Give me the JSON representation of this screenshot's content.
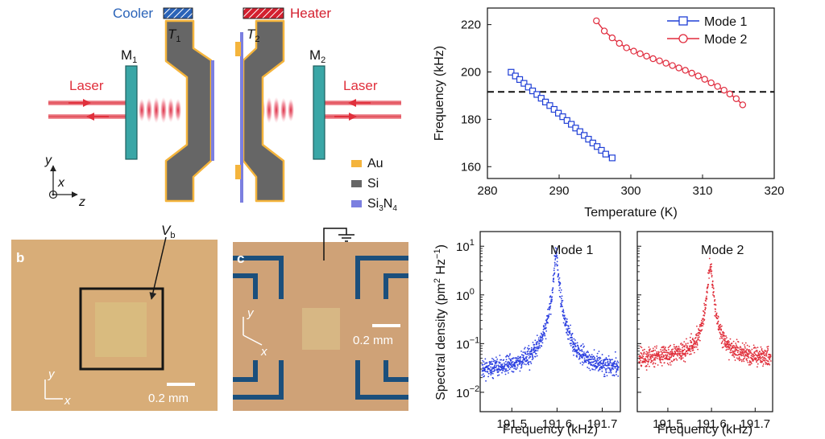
{
  "panel_a": {
    "cooler_label": "Cooler",
    "heater_label": "Heater",
    "t1_label": "T",
    "t1_sub": "1",
    "t2_label": "T",
    "t2_sub": "2",
    "m1_label": "M",
    "m1_sub": "1",
    "m2_label": "M",
    "m2_sub": "2",
    "laser_left": "Laser",
    "laser_right": "Laser",
    "axis_y": "y",
    "axis_x": "x",
    "axis_z": "z",
    "legend": {
      "au": "Au",
      "si": "Si",
      "sin_base": "Si",
      "sin_sub1": "3",
      "sin_mid": "N",
      "sin_sub2": "4"
    },
    "colors": {
      "au": "#f4b43c",
      "si": "#666666",
      "sin": "#7b7fe0",
      "cooler": "#2a63b8",
      "heater": "#d4202f",
      "laser": "#e0303c",
      "mirror": "#3aa6a6"
    }
  },
  "panel_b": {
    "panel_label": "b",
    "vb_label": "V",
    "vb_sub": "b",
    "scale_bar": "0.2 mm",
    "axis_y": "y",
    "axis_x": "x"
  },
  "panel_c": {
    "panel_label": "c",
    "scale_bar": "0.2 mm",
    "axis_y": "y",
    "axis_x": "x"
  },
  "chart_data": [
    {
      "type": "line",
      "id": "freq_vs_temp",
      "title": "",
      "xlabel": "Temperature (K)",
      "ylabel": "Frequency (kHz)",
      "xlim": [
        280,
        320
      ],
      "ylim": [
        155,
        227
      ],
      "xticks": [
        280,
        290,
        300,
        310,
        320
      ],
      "yticks": [
        160,
        180,
        200,
        220
      ],
      "reference_line_y": 191.6,
      "legend_position": "top-right",
      "series": [
        {
          "name": "Mode 1",
          "color": "#1f3fd6",
          "marker": "square",
          "x": [
            283.3,
            283.9,
            284.5,
            285.1,
            285.7,
            286.3,
            286.9,
            287.5,
            288.1,
            288.7,
            289.3,
            289.9,
            290.5,
            291.1,
            291.7,
            292.3,
            292.9,
            293.5,
            294.1,
            294.7,
            295.3,
            295.9,
            296.5,
            297.4
          ],
          "y": [
            199.9,
            198.3,
            196.8,
            195.2,
            193.6,
            192.0,
            190.5,
            188.9,
            187.3,
            185.8,
            184.2,
            182.6,
            181.1,
            179.5,
            177.9,
            176.3,
            174.8,
            173.2,
            171.6,
            170.0,
            168.5,
            166.9,
            165.3,
            163.7
          ]
        },
        {
          "name": "Mode 2",
          "color": "#e02a3c",
          "marker": "circle",
          "x": [
            295.2,
            296.3,
            297.4,
            298.4,
            299.4,
            300.4,
            301.3,
            302.2,
            303.1,
            304.0,
            304.9,
            305.8,
            306.7,
            307.6,
            308.5,
            309.4,
            310.3,
            311.2,
            312.1,
            313.0,
            313.8,
            314.7,
            315.6
          ],
          "y": [
            221.6,
            217.3,
            214.4,
            212.1,
            210.2,
            208.8,
            207.7,
            206.7,
            205.6,
            204.7,
            203.7,
            202.7,
            201.7,
            200.7,
            199.5,
            198.3,
            196.9,
            195.4,
            193.9,
            192.3,
            190.7,
            188.7,
            186.1
          ]
        }
      ]
    },
    {
      "type": "scatter",
      "id": "spectrum_mode1",
      "title": "Mode 1",
      "xlabel": "Frequency (kHz)",
      "ylabel": "Spectral density (pm² Hz⁻¹)",
      "ylabel_base": "Spectral density (pm",
      "ylabel_sup1": "2",
      "ylabel_mid": " Hz",
      "ylabel_sup2": "−1",
      "ylabel_end": ")",
      "yscale": "log",
      "xlim": [
        191.43,
        191.74
      ],
      "ylim": [
        0.004,
        20
      ],
      "xticks": [
        191.5,
        191.6,
        191.7
      ],
      "xticklabels": [
        "191.5",
        "191.6",
        "191.7"
      ],
      "yticks": [
        0.01,
        0.1,
        1,
        10
      ],
      "ytick_base": [
        "10",
        "10",
        "10",
        "10"
      ],
      "ytick_exp": [
        "−2",
        "−1",
        "0",
        "1"
      ],
      "peak_frequency": 191.598,
      "peak_value": 6.0,
      "baseline": 0.027,
      "color": "#2b3fe0"
    },
    {
      "type": "scatter",
      "id": "spectrum_mode2",
      "title": "Mode 2",
      "xlabel": "Frequency (kHz)",
      "yscale": "log",
      "xlim": [
        191.43,
        191.74
      ],
      "ylim": [
        0.004,
        20
      ],
      "xticks": [
        191.5,
        191.6,
        191.7
      ],
      "xticklabels": [
        "191.5",
        "191.6",
        "191.7"
      ],
      "yticks": [
        0.01,
        0.1,
        1,
        10
      ],
      "peak_frequency": 191.597,
      "peak_value": 4.2,
      "baseline": 0.05,
      "color": "#e0303c"
    }
  ]
}
